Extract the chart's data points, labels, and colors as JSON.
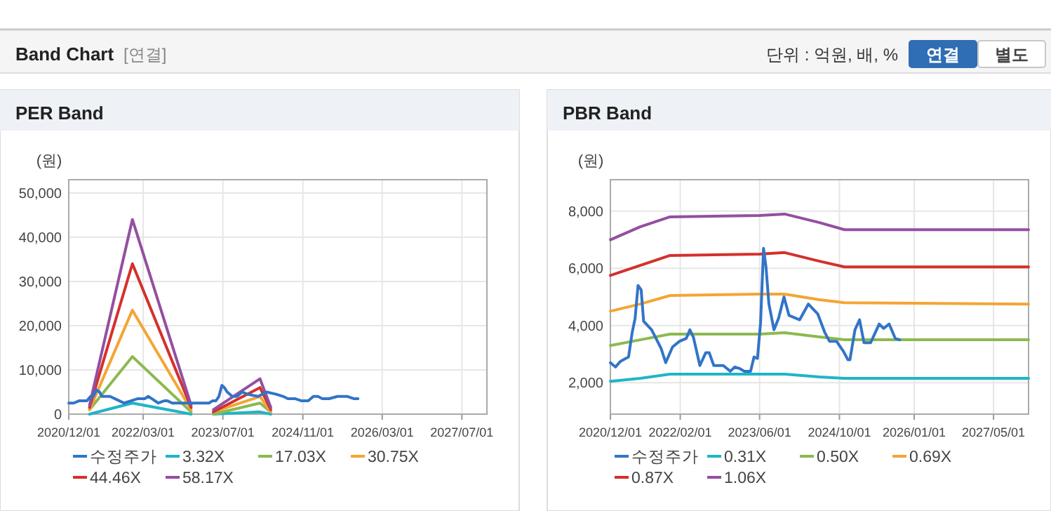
{
  "chart_data": [
    {
      "type": "other",
      "title": "Band Chart",
      "annotations": [
        "[연결]",
        "단위 : 억원, 배, %",
        "연결",
        "별도"
      ]
    },
    {
      "type": "line",
      "title": "PER Band",
      "ylabel": "(원)",
      "legend": "bottom",
      "grid": true,
      "xlim": [
        "2020-12-01",
        "2027-12-01"
      ],
      "xticks": [
        {
          "value": "2020-12-01",
          "label": "2020/12/01"
        },
        {
          "value": "2022-03-01",
          "label": "2022/03/01"
        },
        {
          "value": "2023-07-01",
          "label": "2023/07/01"
        },
        {
          "value": "2024-11-01",
          "label": "2024/11/01"
        },
        {
          "value": "2026-03-01",
          "label": "2026/03/01"
        },
        {
          "value": "2027-07-01",
          "label": "2027/07/01"
        }
      ],
      "ylim": [
        0,
        53000
      ],
      "yticks": [
        0,
        {
          "value": 10000,
          "label": "10,000"
        },
        {
          "value": 20000,
          "label": "20,000"
        },
        {
          "value": 30000,
          "label": "30,000"
        },
        {
          "value": 40000,
          "label": "40,000"
        },
        {
          "value": 50000,
          "label": "50,000"
        }
      ],
      "series": [
        {
          "name": "수정주가",
          "color": "#3274c8",
          "x": [
            "2020-12-01",
            "2021-01-01",
            "2021-02-01",
            "2021-03-22",
            "2021-04-13",
            "2021-05-01",
            "2021-05-19",
            "2021-06-07",
            "2021-06-22",
            "2021-08-10",
            "2021-10-07",
            "2021-11-04",
            "2021-12-16",
            "2022-01-28",
            "2022-03-10",
            "2022-04-01",
            "2022-04-22",
            "2022-06-01",
            "2022-07-07",
            "2022-07-28",
            "2022-08-25",
            "2022-10-22",
            "2022-12-04",
            "2023-01-01",
            "2023-01-28",
            "2023-02-28",
            "2023-04-07",
            "2023-04-28",
            "2023-05-19",
            "2023-06-07",
            "2023-06-25",
            "2023-07-10",
            "2023-07-28",
            "2023-08-28",
            "2023-09-25",
            "2023-10-28",
            "2023-11-28",
            "2024-02-01",
            "2024-03-25",
            "2024-05-22",
            "2024-07-04",
            "2024-08-01",
            "2024-09-13",
            "2024-10-25",
            "2024-11-22",
            "2024-12-04",
            "2025-01-04",
            "2025-02-01",
            "2025-02-28",
            "2025-04-10",
            "2025-06-01",
            "2025-06-28",
            "2025-08-01",
            "2025-09-07",
            "2025-10-04"
          ],
          "values": [
            2500,
            2500,
            3000,
            3000,
            4000,
            4000,
            5500,
            5000,
            4000,
            4000,
            3000,
            2500,
            3000,
            3500,
            3500,
            4000,
            3500,
            2500,
            3000,
            3000,
            2500,
            2500,
            2500,
            2500,
            2500,
            2500,
            2500,
            3000,
            3000,
            4000,
            6500,
            6000,
            5000,
            4000,
            4000,
            5000,
            4500,
            4000,
            5000,
            4500,
            4000,
            3500,
            3500,
            3000,
            3000,
            3000,
            4000,
            4000,
            3500,
            3500,
            4000,
            4000,
            4000,
            3500,
            3500
          ]
        },
        {
          "name": "3.32X",
          "color": "#1fb5c6",
          "x": [
            "2021-04-07",
            "2021-12-25",
            "2022-12-19"
          ],
          "values": [
            0,
            2500,
            0
          ]
        },
        {
          "name": "17.03X",
          "color": "#8cb94f",
          "x": [
            "2021-04-07",
            "2021-12-25",
            "2022-12-19"
          ],
          "values": [
            1000,
            13000,
            500
          ]
        },
        {
          "name": "30.75X",
          "color": "#f4a534",
          "x": [
            "2021-04-07",
            "2021-12-25",
            "2022-12-19"
          ],
          "values": [
            1000,
            23500,
            1000
          ]
        },
        {
          "name": "44.46X",
          "color": "#d3312c",
          "x": [
            "2021-04-07",
            "2021-12-25",
            "2022-12-19"
          ],
          "values": [
            1500,
            34000,
            1500
          ]
        },
        {
          "name": "58.17X",
          "color": "#944f9f",
          "x": [
            "2021-04-07",
            "2021-12-25",
            "2022-12-19"
          ],
          "values": [
            2000,
            44000,
            2000
          ]
        },
        {
          "color": "#1fb5c6",
          "x": [
            "2023-05-04",
            "2024-02-13",
            "2024-04-19"
          ],
          "values": [
            0,
            500,
            0
          ]
        },
        {
          "color": "#8cb94f",
          "x": [
            "2023-05-04",
            "2024-02-13",
            "2024-04-19"
          ],
          "values": [
            0,
            2500,
            500
          ]
        },
        {
          "color": "#f4a534",
          "x": [
            "2023-05-04",
            "2024-02-13",
            "2024-04-19"
          ],
          "values": [
            500,
            4000,
            500
          ]
        },
        {
          "color": "#d3312c",
          "x": [
            "2023-05-04",
            "2024-02-13",
            "2024-04-19"
          ],
          "values": [
            500,
            6000,
            1000
          ]
        },
        {
          "color": "#944f9f",
          "x": [
            "2023-05-04",
            "2024-02-13",
            "2024-04-19"
          ],
          "values": [
            1000,
            8000,
            1500
          ]
        }
      ]
    },
    {
      "type": "line",
      "title": "PBR Band",
      "ylabel": "(원)",
      "legend": "bottom",
      "grid": true,
      "xlim": [
        "2020-12-01",
        "2027-12-01"
      ],
      "xticks": [
        {
          "value": "2020-12-01",
          "label": "2020/12/01"
        },
        {
          "value": "2022-02-01",
          "label": "2022/02/01"
        },
        {
          "value": "2023-06-01",
          "label": "2023/06/01"
        },
        {
          "value": "2024-10-01",
          "label": "2024/10/01"
        },
        {
          "value": "2026-01-01",
          "label": "2026/01/01"
        },
        {
          "value": "2027-05-01",
          "label": "2027/05/01"
        }
      ],
      "ylim": [
        900,
        9100
      ],
      "yticks": [
        {
          "value": 2000,
          "label": "2,000"
        },
        {
          "value": 4000,
          "label": "4,000"
        },
        {
          "value": 6000,
          "label": "6,000"
        },
        {
          "value": 8000,
          "label": "8,000"
        }
      ],
      "series": [
        {
          "name": "수정주가",
          "color": "#3274c8",
          "x": [
            "2020-12-01",
            "2021-01-01",
            "2021-02-01",
            "2021-03-22",
            "2021-04-13",
            "2021-05-01",
            "2021-05-19",
            "2021-06-07",
            "2021-06-22",
            "2021-08-10",
            "2021-10-07",
            "2021-11-04",
            "2021-12-16",
            "2022-01-28",
            "2022-03-10",
            "2022-04-01",
            "2022-04-22",
            "2022-06-01",
            "2022-07-07",
            "2022-07-28",
            "2022-08-25",
            "2022-10-22",
            "2022-12-04",
            "2023-01-01",
            "2023-01-28",
            "2023-02-28",
            "2023-04-07",
            "2023-04-28",
            "2023-05-19",
            "2023-06-07",
            "2023-06-25",
            "2023-07-10",
            "2023-07-28",
            "2023-08-28",
            "2023-09-25",
            "2023-10-28",
            "2023-11-28",
            "2024-02-01",
            "2024-03-25",
            "2024-05-22",
            "2024-07-04",
            "2024-08-01",
            "2024-09-13",
            "2024-10-25",
            "2024-11-22",
            "2024-12-04",
            "2025-01-04",
            "2025-02-01",
            "2025-02-28",
            "2025-04-10",
            "2025-06-01",
            "2025-06-28",
            "2025-08-01",
            "2025-09-07",
            "2025-10-04"
          ],
          "values": [
            2700,
            2550,
            2750,
            2900,
            3750,
            4250,
            5400,
            5250,
            4150,
            3850,
            3200,
            2700,
            3250,
            3450,
            3550,
            3850,
            3600,
            2600,
            3050,
            3050,
            2600,
            2600,
            2400,
            2550,
            2500,
            2400,
            2400,
            2900,
            2850,
            4100,
            6700,
            6050,
            4750,
            3850,
            4250,
            5000,
            4350,
            4200,
            4750,
            4400,
            3750,
            3450,
            3450,
            3100,
            2800,
            2800,
            3850,
            4200,
            3400,
            3400,
            4050,
            3900,
            4050,
            3550,
            3500
          ]
        },
        {
          "name": "0.31X",
          "color": "#1fb5c6",
          "x": [
            "2020-12-01",
            "2021-06-01",
            "2021-12-01",
            "2023-06-01",
            "2023-11-01",
            "2024-06-01",
            "2024-11-01",
            "2027-12-01"
          ],
          "values": [
            2050,
            2150,
            2300,
            2300,
            2300,
            2200,
            2150,
            2150
          ]
        },
        {
          "name": "0.50X",
          "color": "#8cb94f",
          "x": [
            "2020-12-01",
            "2021-06-01",
            "2021-12-01",
            "2023-06-01",
            "2023-11-01",
            "2024-06-01",
            "2024-11-01",
            "2027-12-01"
          ],
          "values": [
            3300,
            3500,
            3700,
            3700,
            3750,
            3600,
            3500,
            3500
          ]
        },
        {
          "name": "0.69X",
          "color": "#f4a534",
          "x": [
            "2020-12-01",
            "2021-06-01",
            "2021-12-01",
            "2023-06-01",
            "2023-11-01",
            "2024-06-01",
            "2024-11-01",
            "2027-12-01"
          ],
          "values": [
            4500,
            4750,
            5050,
            5100,
            5100,
            4900,
            4800,
            4750
          ]
        },
        {
          "name": "0.87X",
          "color": "#d3312c",
          "x": [
            "2020-12-01",
            "2021-06-01",
            "2021-12-01",
            "2023-06-01",
            "2023-11-01",
            "2024-06-01",
            "2024-11-01",
            "2027-12-01"
          ],
          "values": [
            5750,
            6100,
            6450,
            6500,
            6550,
            6250,
            6050,
            6050
          ]
        },
        {
          "name": "1.06X",
          "color": "#944f9f",
          "x": [
            "2020-12-01",
            "2021-06-01",
            "2021-12-01",
            "2023-06-01",
            "2023-11-01",
            "2024-06-01",
            "2024-11-01",
            "2027-12-01"
          ],
          "values": [
            7000,
            7450,
            7800,
            7850,
            7900,
            7600,
            7350,
            7350
          ]
        }
      ]
    }
  ]
}
